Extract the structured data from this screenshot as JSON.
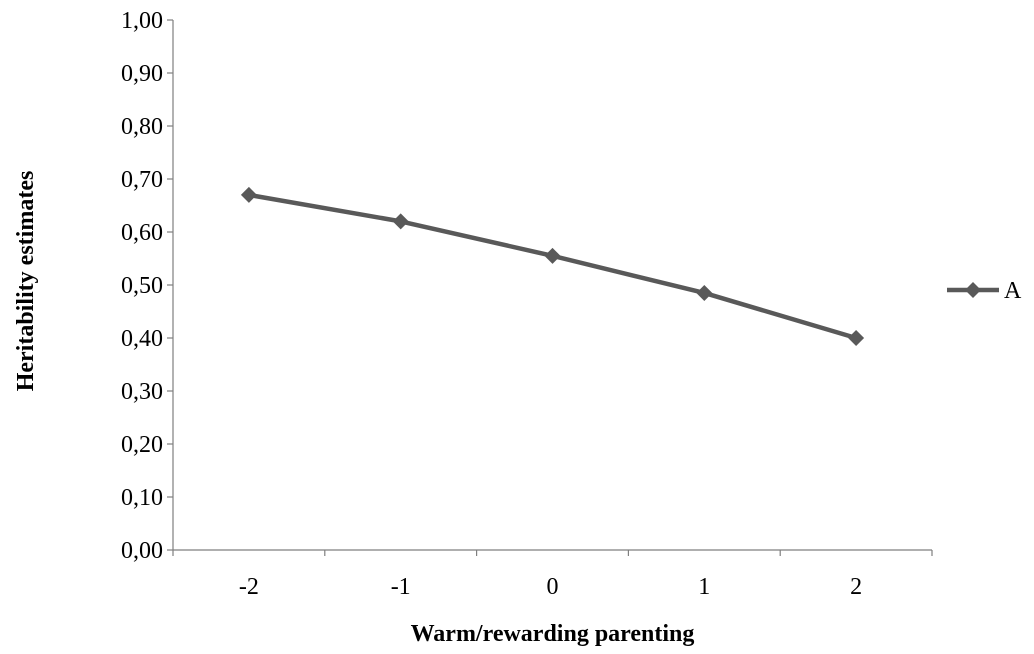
{
  "chart_data": {
    "type": "line",
    "title": "",
    "xlabel": "Warm/rewarding parenting",
    "ylabel": "Heritability estimates",
    "categories": [
      "-2",
      "-1",
      "0",
      "1",
      "2"
    ],
    "y_tick_labels": [
      "0,00",
      "0,10",
      "0,20",
      "0,30",
      "0,40",
      "0,50",
      "0,60",
      "0,70",
      "0,80",
      "0,90",
      "1,00"
    ],
    "ylim": [
      0,
      1
    ],
    "series": [
      {
        "name": "A",
        "values": [
          0.67,
          0.62,
          0.555,
          0.485,
          0.4
        ],
        "color": "#595959",
        "marker": "diamond"
      }
    ],
    "grid": false,
    "legend_position": "right"
  }
}
